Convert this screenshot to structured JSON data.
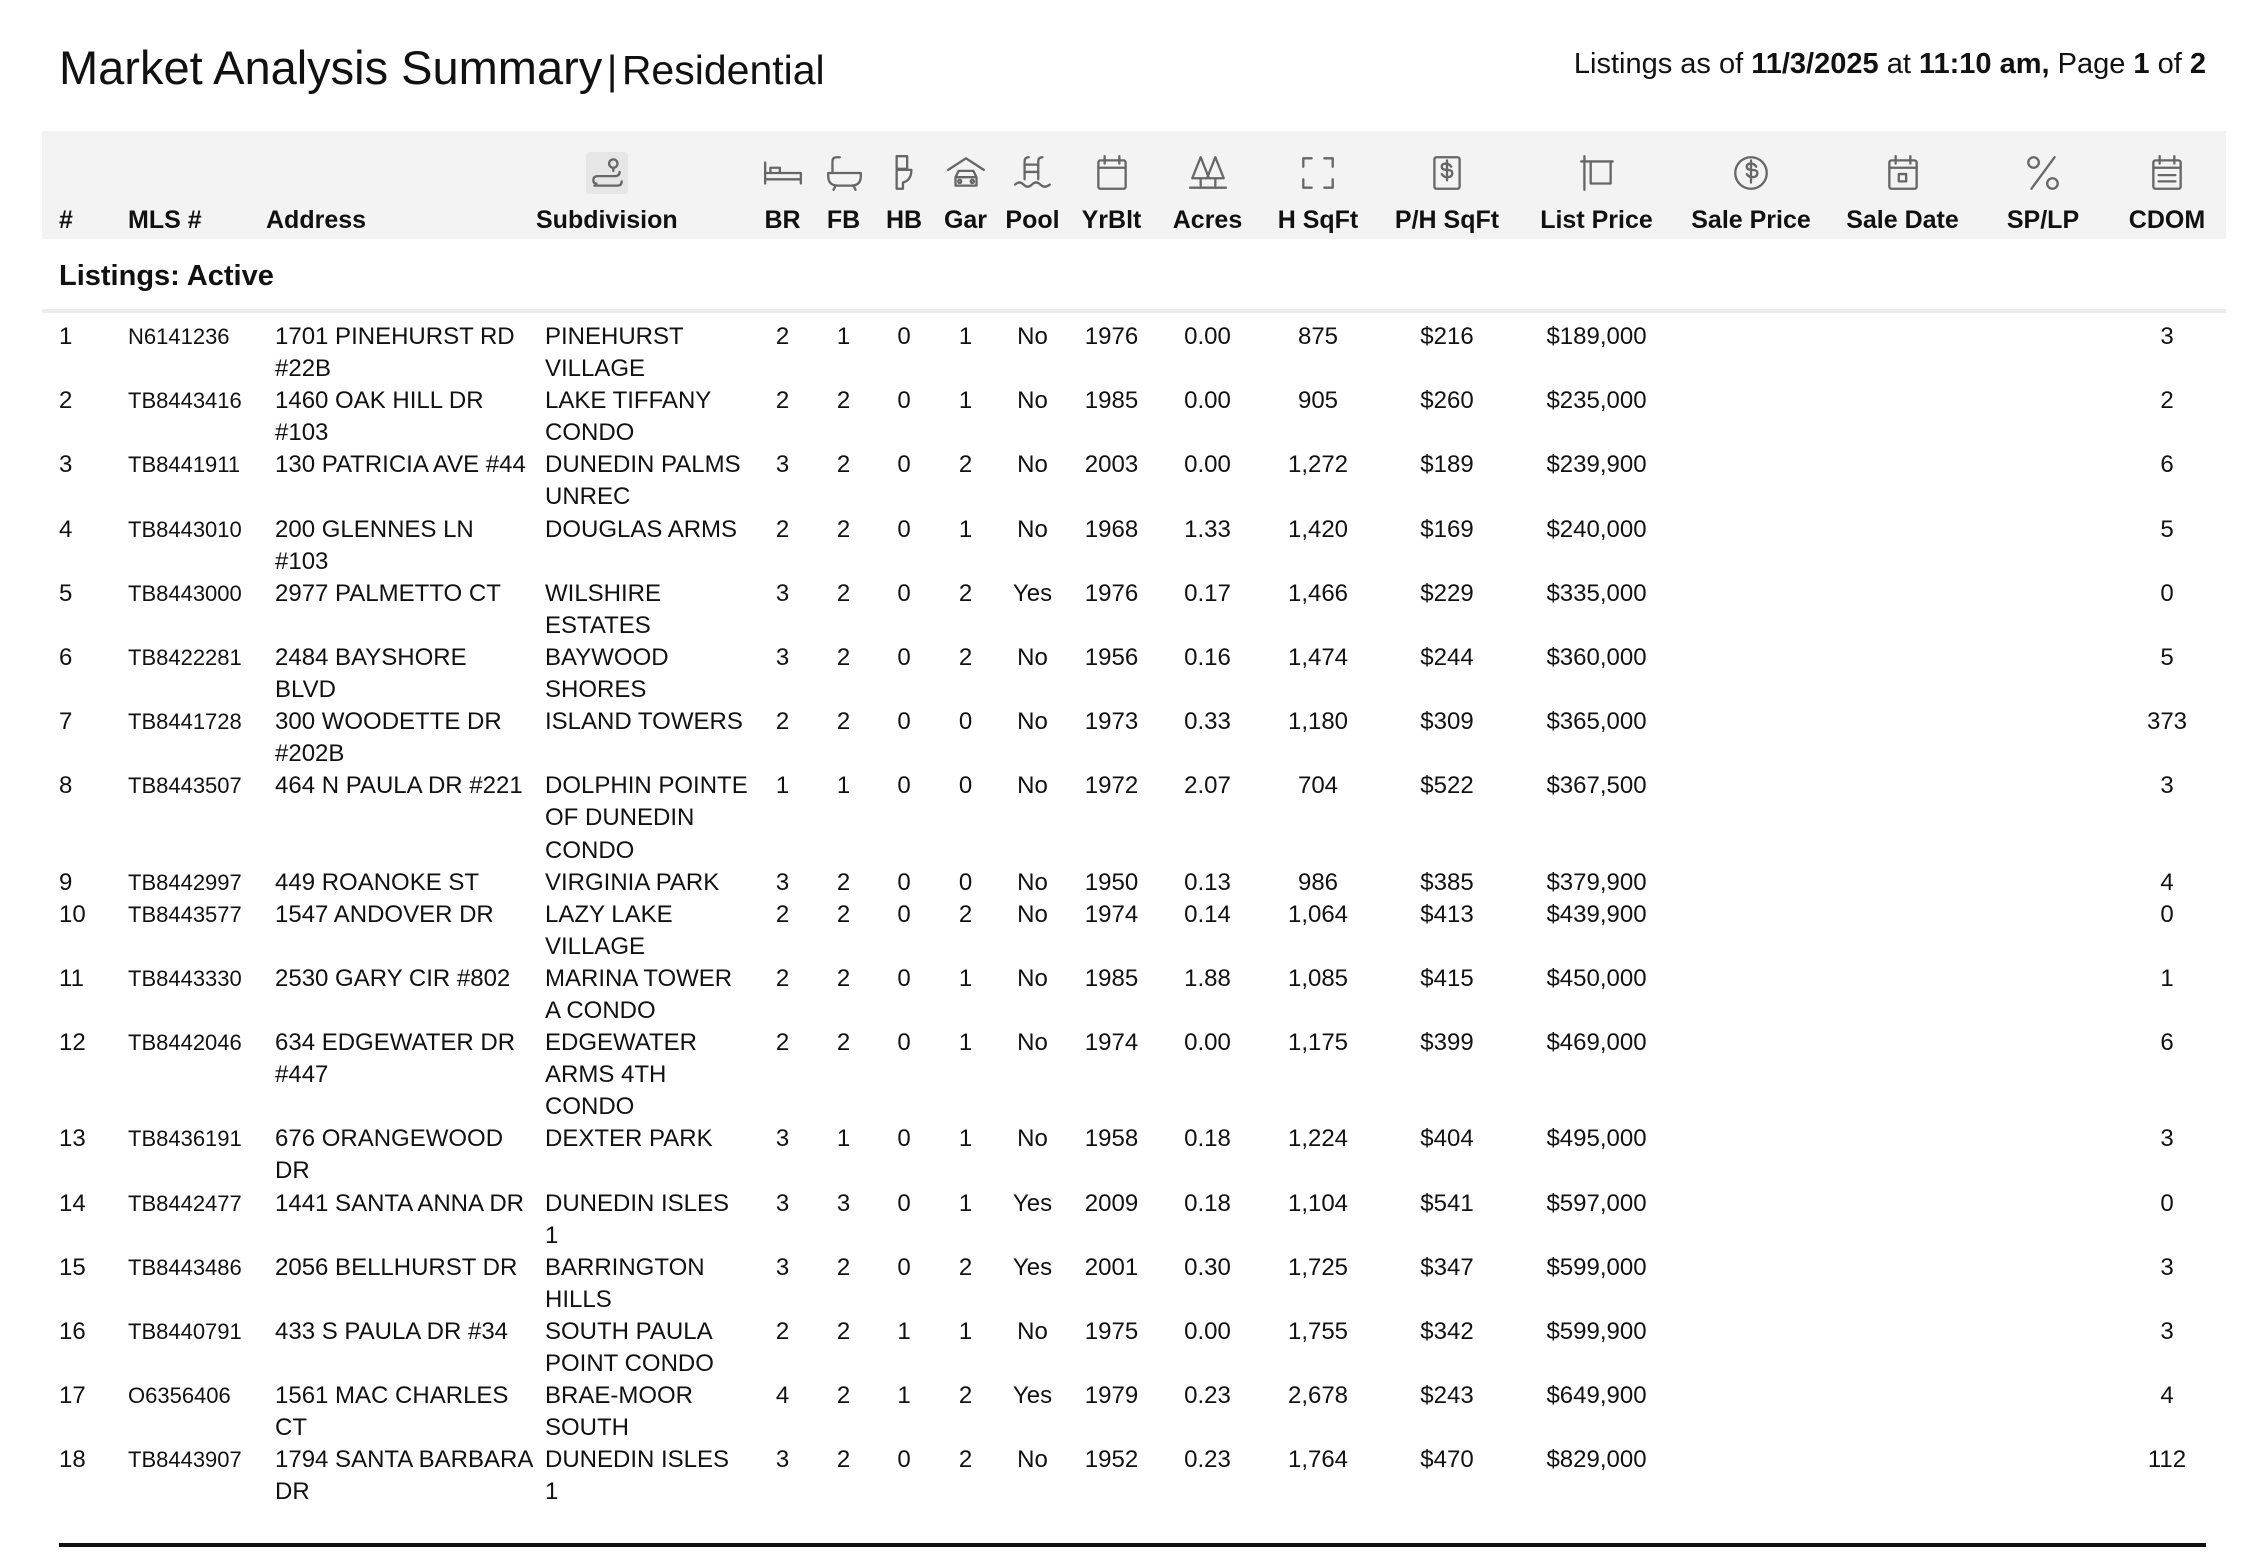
{
  "header": {
    "title": "Market Analysis Summary",
    "separator": "|",
    "subtitle": "Residential",
    "listing_info": [
      "Listings as of",
      "11/3/2025",
      "at",
      "11:10 am,",
      "Page",
      "1",
      "of",
      "2"
    ]
  },
  "table": {
    "columns": [
      "#",
      "MLS #",
      "Address",
      "Subdivision",
      "BR",
      "FB",
      "HB",
      "Gar",
      "Pool",
      "YrBlt",
      "Acres",
      "H SqFt",
      "P/H SqFt",
      "List Price",
      "Sale Price",
      "Sale Date",
      "SP/LP",
      "CDOM"
    ],
    "section": "Listings: Active",
    "rows": [
      [
        "1",
        "N6141236",
        "1701 PINEHURST RD #22B",
        "PINEHURST VILLAGE",
        "2",
        "1",
        "0",
        "1",
        "No",
        "1976",
        "0.00",
        "875",
        "$216",
        "$189,000",
        "3"
      ],
      [
        "2",
        "TB8443416",
        "1460 OAK HILL DR #103",
        "LAKE TIFFANY CONDO",
        "2",
        "2",
        "0",
        "1",
        "No",
        "1985",
        "0.00",
        "905",
        "$260",
        "$235,000",
        "2"
      ],
      [
        "3",
        "TB8441911",
        "130 PATRICIA AVE #44",
        "DUNEDIN PALMS UNREC",
        "3",
        "2",
        "0",
        "2",
        "No",
        "2003",
        "0.00",
        "1,272",
        "$189",
        "$239,900",
        "6"
      ],
      [
        "4",
        "TB8443010",
        "200 GLENNES LN #103",
        "DOUGLAS ARMS",
        "2",
        "2",
        "0",
        "1",
        "No",
        "1968",
        "1.33",
        "1,420",
        "$169",
        "$240,000",
        "5"
      ],
      [
        "5",
        "TB8443000",
        "2977 PALMETTO CT",
        "WILSHIRE ESTATES",
        "3",
        "2",
        "0",
        "2",
        "Yes",
        "1976",
        "0.17",
        "1,466",
        "$229",
        "$335,000",
        "0"
      ],
      [
        "6",
        "TB8422281",
        "2484 BAYSHORE BLVD",
        "BAYWOOD SHORES",
        "3",
        "2",
        "0",
        "2",
        "No",
        "1956",
        "0.16",
        "1,474",
        "$244",
        "$360,000",
        "5"
      ],
      [
        "7",
        "TB8441728",
        "300 WOODETTE DR #202B",
        "ISLAND TOWERS",
        "2",
        "2",
        "0",
        "0",
        "No",
        "1973",
        "0.33",
        "1,180",
        "$309",
        "$365,000",
        "373"
      ],
      [
        "8",
        "TB8443507",
        "464 N PAULA DR #221",
        "DOLPHIN POINTE OF DUNEDIN CONDO",
        "1",
        "1",
        "0",
        "0",
        "No",
        "1972",
        "2.07",
        "704",
        "$522",
        "$367,500",
        "3"
      ],
      [
        "9",
        "TB8442997",
        "449 ROANOKE ST",
        "VIRGINIA PARK",
        "3",
        "2",
        "0",
        "0",
        "No",
        "1950",
        "0.13",
        "986",
        "$385",
        "$379,900",
        "4"
      ],
      [
        "10",
        "TB8443577",
        "1547 ANDOVER DR",
        "LAZY LAKE VILLAGE",
        "2",
        "2",
        "0",
        "2",
        "No",
        "1974",
        "0.14",
        "1,064",
        "$413",
        "$439,900",
        "0"
      ],
      [
        "11",
        "TB8443330",
        "2530 GARY CIR #802",
        "MARINA TOWER A CONDO",
        "2",
        "2",
        "0",
        "1",
        "No",
        "1985",
        "1.88",
        "1,085",
        "$415",
        "$450,000",
        "1"
      ],
      [
        "12",
        "TB8442046",
        "634 EDGEWATER DR #447",
        "EDGEWATER ARMS 4TH CONDO",
        "2",
        "2",
        "0",
        "1",
        "No",
        "1974",
        "0.00",
        "1,175",
        "$399",
        "$469,000",
        "6"
      ],
      [
        "13",
        "TB8436191",
        "676 ORANGEWOOD DR",
        "DEXTER PARK",
        "3",
        "1",
        "0",
        "1",
        "No",
        "1958",
        "0.18",
        "1,224",
        "$404",
        "$495,000",
        "3"
      ],
      [
        "14",
        "TB8442477",
        "1441 SANTA ANNA DR",
        "DUNEDIN ISLES 1",
        "3",
        "3",
        "0",
        "1",
        "Yes",
        "2009",
        "0.18",
        "1,104",
        "$541",
        "$597,000",
        "0"
      ],
      [
        "15",
        "TB8443486",
        "2056 BELLHURST DR",
        "BARRINGTON HILLS",
        "3",
        "2",
        "0",
        "2",
        "Yes",
        "2001",
        "0.30",
        "1,725",
        "$347",
        "$599,000",
        "3"
      ],
      [
        "16",
        "TB8440791",
        "433 S PAULA DR #34",
        "SOUTH PAULA POINT CONDO",
        "2",
        "2",
        "1",
        "1",
        "No",
        "1975",
        "0.00",
        "1,755",
        "$342",
        "$599,900",
        "3"
      ],
      [
        "17",
        "O6356406",
        "1561 MAC CHARLES CT",
        "BRAE-MOOR SOUTH",
        "4",
        "2",
        "1",
        "2",
        "Yes",
        "1979",
        "0.23",
        "2,678",
        "$243",
        "$649,900",
        "4"
      ],
      [
        "18",
        "TB8443907",
        "1794 SANTA BARBARA DR",
        "DUNEDIN ISLES 1",
        "3",
        "2",
        "0",
        "2",
        "No",
        "1952",
        "0.23",
        "1,764",
        "$470",
        "$829,000",
        "112"
      ]
    ]
  }
}
